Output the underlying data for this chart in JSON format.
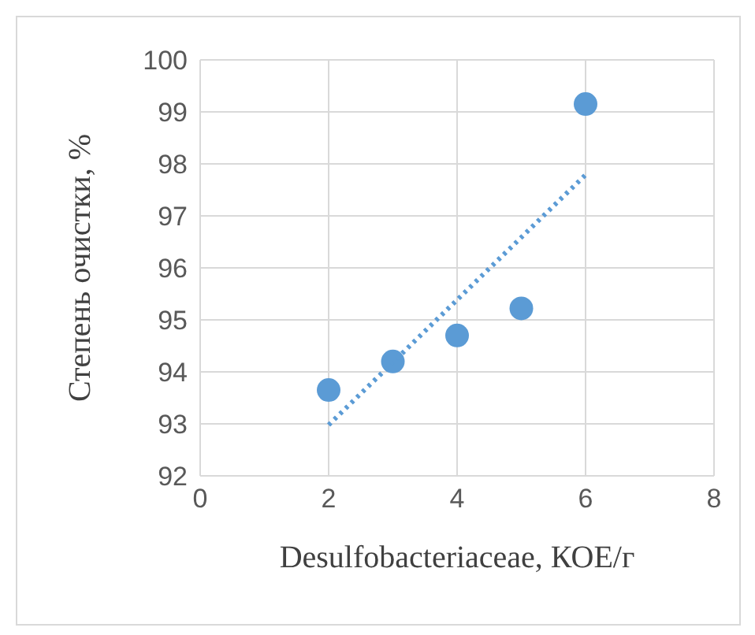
{
  "chart_data": {
    "type": "scatter",
    "xlabel": "Desulfobacteriaceae, КОЕ/г",
    "ylabel": "Степень очистки, %",
    "xlim": [
      0,
      8
    ],
    "xticks": [
      0,
      2,
      4,
      6,
      8
    ],
    "ylim": [
      92,
      100
    ],
    "yticks": [
      92,
      93,
      94,
      95,
      96,
      97,
      98,
      99,
      100
    ],
    "grid": true,
    "marker": "circle",
    "series": [
      {
        "type": "scatter",
        "color": "#5b9bd5",
        "x": [
          2,
          3,
          4,
          5,
          6
        ],
        "values": [
          93.65,
          94.2,
          94.7,
          95.22,
          99.15
        ]
      },
      {
        "type": "line",
        "color": "#5b9bd5",
        "line_style": "dotted",
        "marker": "none",
        "x": [
          2,
          6
        ],
        "values": [
          92.98,
          97.79
        ]
      }
    ]
  }
}
